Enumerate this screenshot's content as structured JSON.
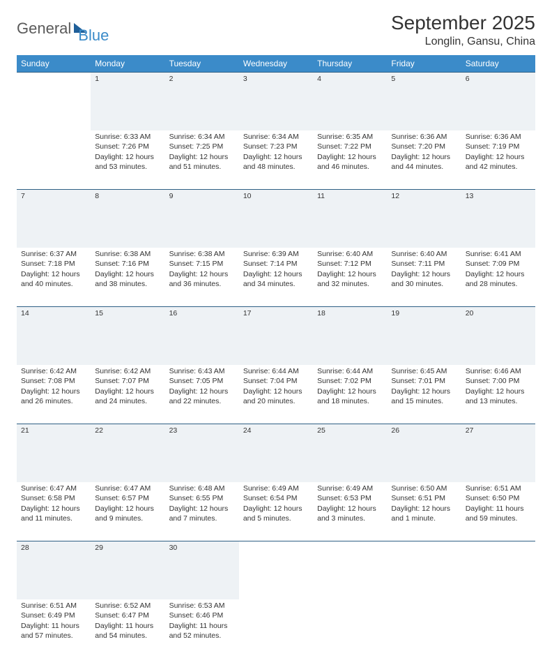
{
  "brand": {
    "part1": "General",
    "part2": "Blue"
  },
  "title": "September 2025",
  "location": "Longlin, Gansu, China",
  "colors": {
    "header_bg": "#3b8bc9",
    "header_text": "#ffffff",
    "daynum_bg": "#eef2f5",
    "daynum_text": "#5a6b78",
    "row_border": "#2e5f84",
    "body_text": "#333333",
    "brand_gray": "#5a5a5a",
    "brand_blue": "#3b8bc9"
  },
  "weekdays": [
    "Sunday",
    "Monday",
    "Tuesday",
    "Wednesday",
    "Thursday",
    "Friday",
    "Saturday"
  ],
  "weeks": [
    {
      "nums": [
        "",
        "1",
        "2",
        "3",
        "4",
        "5",
        "6"
      ],
      "cells": [
        null,
        {
          "sr": "Sunrise: 6:33 AM",
          "ss": "Sunset: 7:26 PM",
          "d1": "Daylight: 12 hours",
          "d2": "and 53 minutes."
        },
        {
          "sr": "Sunrise: 6:34 AM",
          "ss": "Sunset: 7:25 PM",
          "d1": "Daylight: 12 hours",
          "d2": "and 51 minutes."
        },
        {
          "sr": "Sunrise: 6:34 AM",
          "ss": "Sunset: 7:23 PM",
          "d1": "Daylight: 12 hours",
          "d2": "and 48 minutes."
        },
        {
          "sr": "Sunrise: 6:35 AM",
          "ss": "Sunset: 7:22 PM",
          "d1": "Daylight: 12 hours",
          "d2": "and 46 minutes."
        },
        {
          "sr": "Sunrise: 6:36 AM",
          "ss": "Sunset: 7:20 PM",
          "d1": "Daylight: 12 hours",
          "d2": "and 44 minutes."
        },
        {
          "sr": "Sunrise: 6:36 AM",
          "ss": "Sunset: 7:19 PM",
          "d1": "Daylight: 12 hours",
          "d2": "and 42 minutes."
        }
      ]
    },
    {
      "nums": [
        "7",
        "8",
        "9",
        "10",
        "11",
        "12",
        "13"
      ],
      "cells": [
        {
          "sr": "Sunrise: 6:37 AM",
          "ss": "Sunset: 7:18 PM",
          "d1": "Daylight: 12 hours",
          "d2": "and 40 minutes."
        },
        {
          "sr": "Sunrise: 6:38 AM",
          "ss": "Sunset: 7:16 PM",
          "d1": "Daylight: 12 hours",
          "d2": "and 38 minutes."
        },
        {
          "sr": "Sunrise: 6:38 AM",
          "ss": "Sunset: 7:15 PM",
          "d1": "Daylight: 12 hours",
          "d2": "and 36 minutes."
        },
        {
          "sr": "Sunrise: 6:39 AM",
          "ss": "Sunset: 7:14 PM",
          "d1": "Daylight: 12 hours",
          "d2": "and 34 minutes."
        },
        {
          "sr": "Sunrise: 6:40 AM",
          "ss": "Sunset: 7:12 PM",
          "d1": "Daylight: 12 hours",
          "d2": "and 32 minutes."
        },
        {
          "sr": "Sunrise: 6:40 AM",
          "ss": "Sunset: 7:11 PM",
          "d1": "Daylight: 12 hours",
          "d2": "and 30 minutes."
        },
        {
          "sr": "Sunrise: 6:41 AM",
          "ss": "Sunset: 7:09 PM",
          "d1": "Daylight: 12 hours",
          "d2": "and 28 minutes."
        }
      ]
    },
    {
      "nums": [
        "14",
        "15",
        "16",
        "17",
        "18",
        "19",
        "20"
      ],
      "cells": [
        {
          "sr": "Sunrise: 6:42 AM",
          "ss": "Sunset: 7:08 PM",
          "d1": "Daylight: 12 hours",
          "d2": "and 26 minutes."
        },
        {
          "sr": "Sunrise: 6:42 AM",
          "ss": "Sunset: 7:07 PM",
          "d1": "Daylight: 12 hours",
          "d2": "and 24 minutes."
        },
        {
          "sr": "Sunrise: 6:43 AM",
          "ss": "Sunset: 7:05 PM",
          "d1": "Daylight: 12 hours",
          "d2": "and 22 minutes."
        },
        {
          "sr": "Sunrise: 6:44 AM",
          "ss": "Sunset: 7:04 PM",
          "d1": "Daylight: 12 hours",
          "d2": "and 20 minutes."
        },
        {
          "sr": "Sunrise: 6:44 AM",
          "ss": "Sunset: 7:02 PM",
          "d1": "Daylight: 12 hours",
          "d2": "and 18 minutes."
        },
        {
          "sr": "Sunrise: 6:45 AM",
          "ss": "Sunset: 7:01 PM",
          "d1": "Daylight: 12 hours",
          "d2": "and 15 minutes."
        },
        {
          "sr": "Sunrise: 6:46 AM",
          "ss": "Sunset: 7:00 PM",
          "d1": "Daylight: 12 hours",
          "d2": "and 13 minutes."
        }
      ]
    },
    {
      "nums": [
        "21",
        "22",
        "23",
        "24",
        "25",
        "26",
        "27"
      ],
      "cells": [
        {
          "sr": "Sunrise: 6:47 AM",
          "ss": "Sunset: 6:58 PM",
          "d1": "Daylight: 12 hours",
          "d2": "and 11 minutes."
        },
        {
          "sr": "Sunrise: 6:47 AM",
          "ss": "Sunset: 6:57 PM",
          "d1": "Daylight: 12 hours",
          "d2": "and 9 minutes."
        },
        {
          "sr": "Sunrise: 6:48 AM",
          "ss": "Sunset: 6:55 PM",
          "d1": "Daylight: 12 hours",
          "d2": "and 7 minutes."
        },
        {
          "sr": "Sunrise: 6:49 AM",
          "ss": "Sunset: 6:54 PM",
          "d1": "Daylight: 12 hours",
          "d2": "and 5 minutes."
        },
        {
          "sr": "Sunrise: 6:49 AM",
          "ss": "Sunset: 6:53 PM",
          "d1": "Daylight: 12 hours",
          "d2": "and 3 minutes."
        },
        {
          "sr": "Sunrise: 6:50 AM",
          "ss": "Sunset: 6:51 PM",
          "d1": "Daylight: 12 hours",
          "d2": "and 1 minute."
        },
        {
          "sr": "Sunrise: 6:51 AM",
          "ss": "Sunset: 6:50 PM",
          "d1": "Daylight: 11 hours",
          "d2": "and 59 minutes."
        }
      ]
    },
    {
      "nums": [
        "28",
        "29",
        "30",
        "",
        "",
        "",
        ""
      ],
      "cells": [
        {
          "sr": "Sunrise: 6:51 AM",
          "ss": "Sunset: 6:49 PM",
          "d1": "Daylight: 11 hours",
          "d2": "and 57 minutes."
        },
        {
          "sr": "Sunrise: 6:52 AM",
          "ss": "Sunset: 6:47 PM",
          "d1": "Daylight: 11 hours",
          "d2": "and 54 minutes."
        },
        {
          "sr": "Sunrise: 6:53 AM",
          "ss": "Sunset: 6:46 PM",
          "d1": "Daylight: 11 hours",
          "d2": "and 52 minutes."
        },
        null,
        null,
        null,
        null
      ]
    }
  ]
}
